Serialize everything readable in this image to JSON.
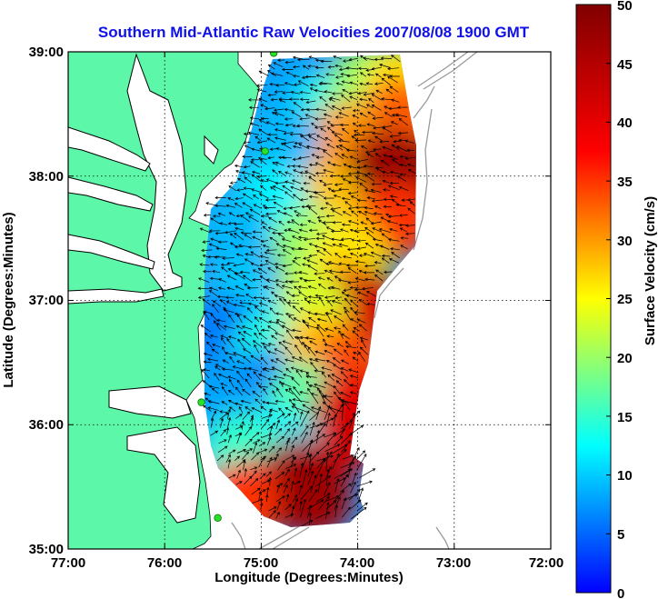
{
  "title": "Southern Mid-Atlantic Raw Velocities 2007/08/08 1900 GMT",
  "x_axis": {
    "label": "Longitude (Degrees:Minutes)",
    "range": [
      -77,
      -72
    ],
    "ticks": [
      {
        "value": -77,
        "label": "77:00"
      },
      {
        "value": -76,
        "label": "76:00"
      },
      {
        "value": -75,
        "label": "75:00"
      },
      {
        "value": -74,
        "label": "74:00"
      },
      {
        "value": -73,
        "label": "73:00"
      },
      {
        "value": -72,
        "label": "72:00"
      }
    ]
  },
  "y_axis": {
    "label": "Latitude (Degrees:Minutes)",
    "range": [
      35,
      39
    ],
    "ticks": [
      {
        "value": 39,
        "label": "39:00"
      },
      {
        "value": 38,
        "label": "38:00"
      },
      {
        "value": 37,
        "label": "37:00"
      },
      {
        "value": 36,
        "label": "36:00"
      },
      {
        "value": 35,
        "label": "35:00"
      }
    ]
  },
  "colorbar": {
    "label": "Surface Velocity (cm/s)",
    "range": [
      0,
      50
    ],
    "ticks": [
      {
        "value": 50,
        "label": "50"
      },
      {
        "value": 45,
        "label": "45"
      },
      {
        "value": 40,
        "label": "40"
      },
      {
        "value": 35,
        "label": "35"
      },
      {
        "value": 30,
        "label": "30"
      },
      {
        "value": 25,
        "label": "25"
      },
      {
        "value": 20,
        "label": "20"
      },
      {
        "value": 15,
        "label": "15"
      },
      {
        "value": 10,
        "label": "10"
      },
      {
        "value": 5,
        "label": "5"
      },
      {
        "value": 0,
        "label": "0"
      }
    ]
  },
  "colors": {
    "land": "#5cf7a8",
    "title": "#1010e8",
    "radar_site": "#27e227"
  },
  "radar_sites": [
    {
      "lon": -74.87,
      "lat": 38.99
    },
    {
      "lon": -74.96,
      "lat": 38.2
    },
    {
      "lon": -75.62,
      "lat": 36.18
    },
    {
      "lon": -75.45,
      "lat": 35.25
    }
  ],
  "speed_patches": [
    {
      "lon": -74.7,
      "lat": 38.7,
      "speed": 8
    },
    {
      "lon": -74.3,
      "lat": 38.5,
      "speed": 14
    },
    {
      "lon": -73.9,
      "lat": 38.75,
      "speed": 20
    },
    {
      "lon": -73.55,
      "lat": 38.75,
      "speed": 26
    },
    {
      "lon": -73.55,
      "lat": 38.5,
      "speed": 33
    },
    {
      "lon": -74.1,
      "lat": 38.3,
      "speed": 30
    },
    {
      "lon": -73.7,
      "lat": 38.1,
      "speed": 45
    },
    {
      "lon": -73.45,
      "lat": 38.0,
      "speed": 48
    },
    {
      "lon": -73.9,
      "lat": 37.85,
      "speed": 49
    },
    {
      "lon": -74.35,
      "lat": 37.8,
      "speed": 28
    },
    {
      "lon": -73.6,
      "lat": 37.65,
      "speed": 35
    },
    {
      "lon": -74.8,
      "lat": 38.3,
      "speed": 9
    },
    {
      "lon": -74.9,
      "lat": 37.8,
      "speed": 12
    },
    {
      "lon": -75.3,
      "lat": 37.55,
      "speed": 9
    },
    {
      "lon": -74.5,
      "lat": 37.45,
      "speed": 20
    },
    {
      "lon": -74.1,
      "lat": 37.35,
      "speed": 26
    },
    {
      "lon": -74.15,
      "lat": 37.0,
      "speed": 38
    },
    {
      "lon": -73.95,
      "lat": 36.95,
      "speed": 42
    },
    {
      "lon": -74.5,
      "lat": 36.95,
      "speed": 23
    },
    {
      "lon": -75.2,
      "lat": 37.0,
      "speed": 10
    },
    {
      "lon": -75.4,
      "lat": 36.75,
      "speed": 6
    },
    {
      "lon": -74.9,
      "lat": 36.6,
      "speed": 14
    },
    {
      "lon": -74.4,
      "lat": 36.6,
      "speed": 28
    },
    {
      "lon": -74.1,
      "lat": 36.45,
      "speed": 34
    },
    {
      "lon": -75.0,
      "lat": 36.3,
      "speed": 6
    },
    {
      "lon": -75.45,
      "lat": 36.2,
      "speed": 8
    },
    {
      "lon": -74.55,
      "lat": 36.2,
      "speed": 17
    },
    {
      "lon": -74.05,
      "lat": 36.15,
      "speed": 40
    },
    {
      "lon": -74.2,
      "lat": 35.9,
      "speed": 42
    },
    {
      "lon": -74.8,
      "lat": 35.85,
      "speed": 12
    },
    {
      "lon": -75.2,
      "lat": 35.8,
      "speed": 15
    },
    {
      "lon": -74.6,
      "lat": 35.6,
      "speed": 46
    },
    {
      "lon": -74.95,
      "lat": 35.45,
      "speed": 48
    },
    {
      "lon": -75.2,
      "lat": 35.4,
      "speed": 35
    },
    {
      "lon": -74.45,
      "lat": 35.4,
      "speed": 47
    }
  ]
}
